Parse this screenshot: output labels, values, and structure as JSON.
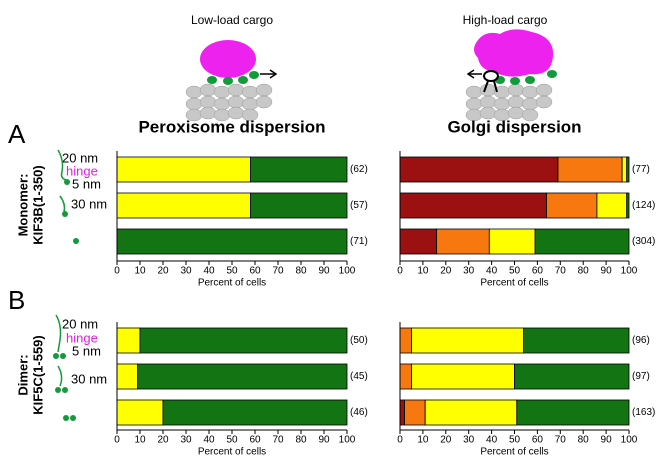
{
  "header": {
    "cargo_labels": [
      "Low-load cargo",
      "High-load cargo"
    ]
  },
  "panels": [
    {
      "letter": "A",
      "construct": [
        "Monomer:",
        "KIF3B(1-350)"
      ],
      "annotations": [
        "20 nm",
        "hinge",
        "5 nm",
        "30 nm"
      ]
    },
    {
      "letter": "B",
      "construct": [
        "Dimer:",
        "KIF5C(1-559)"
      ],
      "annotations": [
        "20 nm",
        "hinge",
        "5 nm",
        "30 nm"
      ]
    }
  ],
  "chart_data": [
    {
      "type": "bar",
      "orientation": "horizontal",
      "stacked": true,
      "title": "Peroxisome dispersion",
      "categories": [
        null,
        null,
        null
      ],
      "n_labels": [
        "(62)",
        "(57)",
        "(71)"
      ],
      "series": [
        {
          "color": "#ffff00",
          "values": [
            58,
            58,
            0
          ]
        },
        {
          "color": "#137413",
          "values": [
            42,
            42,
            100
          ]
        }
      ],
      "xlabel": "Percent of cells",
      "xlim": [
        0,
        100
      ],
      "xticks": [
        0,
        10,
        20,
        30,
        40,
        50,
        60,
        70,
        80,
        90,
        100
      ]
    },
    {
      "type": "bar",
      "orientation": "horizontal",
      "stacked": true,
      "title": "Golgi dispersion",
      "categories": [
        null,
        null,
        null
      ],
      "n_labels": [
        "(77)",
        "(124)",
        "(304)"
      ],
      "series": [
        {
          "color": "#9b1010",
          "values": [
            69,
            64,
            16
          ]
        },
        {
          "color": "#f7780f",
          "values": [
            28,
            22,
            23
          ]
        },
        {
          "color": "#ffff00",
          "values": [
            2,
            13,
            20
          ]
        },
        {
          "color": "#137413",
          "values": [
            1,
            1,
            41
          ]
        }
      ],
      "xlabel": "Percent of cells",
      "xlim": [
        0,
        100
      ],
      "xticks": [
        0,
        10,
        20,
        30,
        40,
        50,
        60,
        70,
        80,
        90,
        100
      ]
    },
    {
      "type": "bar",
      "orientation": "horizontal",
      "stacked": true,
      "categories": [
        null,
        null,
        null
      ],
      "n_labels": [
        "(50)",
        "(45)",
        "(46)"
      ],
      "series": [
        {
          "color": "#ffff00",
          "values": [
            10,
            9,
            20
          ]
        },
        {
          "color": "#137413",
          "values": [
            90,
            91,
            80
          ]
        }
      ],
      "xlabel": "Percent of cells",
      "xlim": [
        0,
        100
      ],
      "xticks": [
        0,
        10,
        20,
        30,
        40,
        50,
        60,
        70,
        80,
        90,
        100
      ]
    },
    {
      "type": "bar",
      "orientation": "horizontal",
      "stacked": true,
      "categories": [
        null,
        null,
        null
      ],
      "n_labels": [
        "(96)",
        "(97)",
        "(163)"
      ],
      "series": [
        {
          "color": "#9b1010",
          "values": [
            0,
            0,
            2
          ]
        },
        {
          "color": "#f7780f",
          "values": [
            5,
            5,
            9
          ]
        },
        {
          "color": "#ffff00",
          "values": [
            49,
            45,
            40
          ]
        },
        {
          "color": "#137413",
          "values": [
            46,
            50,
            49
          ]
        }
      ],
      "xlabel": "Percent of cells",
      "xlim": [
        0,
        100
      ],
      "xticks": [
        0,
        10,
        20,
        30,
        40,
        50,
        60,
        70,
        80,
        90,
        100
      ]
    }
  ]
}
